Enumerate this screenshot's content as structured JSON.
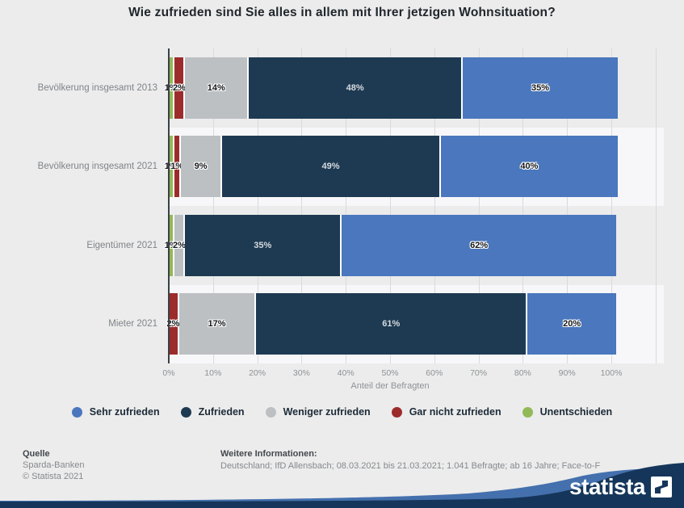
{
  "title": "Wie zufrieden sind Sie alles in allem mit Ihrer jetzigen Wohnsituation?",
  "chart_data": {
    "type": "bar",
    "orientation": "horizontal",
    "stacked": true,
    "title": "Wie zufrieden sind Sie alles in allem mit Ihrer jetzigen Wohnsituation?",
    "categories": [
      "Bevölkerung insgesamt 2013",
      "Bevölkerung insgesamt 2021",
      "Eigentümer 2021",
      "Mieter 2021"
    ],
    "series": [
      {
        "name": "Unentschieden",
        "color": "#92b957",
        "text_style": "halo",
        "values": [
          1,
          1,
          1,
          0
        ]
      },
      {
        "name": "Gar nicht zufrieden",
        "color": "#9c2b2c",
        "text_style": "halo",
        "values": [
          2,
          1,
          0,
          2
        ]
      },
      {
        "name": "Weniger zufrieden",
        "color": "#bcc0c3",
        "text_style": "halo",
        "values": [
          14,
          9,
          2,
          17
        ]
      },
      {
        "name": "Zufrieden",
        "color": "#1e3a52",
        "text_style": "light",
        "values": [
          48,
          49,
          35,
          61
        ]
      },
      {
        "name": "Sehr zufrieden",
        "color": "#4a77bd",
        "text_style": "halo",
        "values": [
          35,
          40,
          62,
          20
        ]
      }
    ],
    "xlabel": "Anteil der Befragten",
    "xlim": [
      0,
      100
    ],
    "ticks": [
      "0%",
      "10%",
      "20%",
      "30%",
      "40%",
      "50%",
      "60%",
      "70%",
      "80%",
      "90%",
      "100%"
    ],
    "grid": true,
    "legend_position": "bottom",
    "legend_order": [
      "Sehr zufrieden",
      "Zufrieden",
      "Weniger zufrieden",
      "Gar nicht zufrieden",
      "Unentschieden"
    ]
  },
  "legend": {
    "items": [
      {
        "label": "Sehr zufrieden",
        "color": "#4a77bd"
      },
      {
        "label": "Zufrieden",
        "color": "#1e3a52"
      },
      {
        "label": "Weniger zufrieden",
        "color": "#bcc0c3"
      },
      {
        "label": "Gar nicht zufrieden",
        "color": "#9c2b2c"
      },
      {
        "label": "Unentschieden",
        "color": "#92b957"
      }
    ]
  },
  "footer": {
    "quelle_label": "Quelle",
    "source": "Sparda-Banken",
    "copyright": "© Statista 2021",
    "info_label": "Weitere Informationen:",
    "info_text": "Deutschland; IfD Allensbach; 08.03.2021 bis 21.03.2021; 1.041 Befragte; ab 16 Jahre; Face-to-F"
  },
  "branding": {
    "logo_text": "statista",
    "wave_navy": "#15365a",
    "wave_blue": "#4470ad"
  }
}
